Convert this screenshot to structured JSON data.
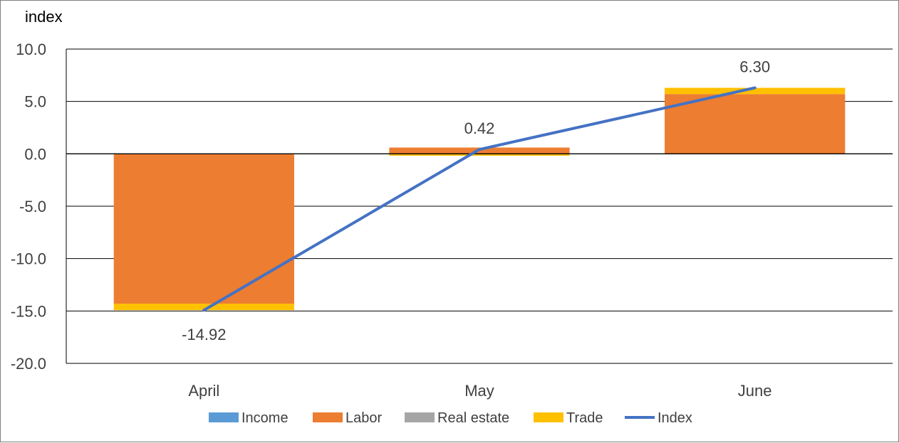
{
  "chart_data": {
    "type": "bar",
    "stacked": true,
    "ylabel": "index",
    "xlabel": "",
    "ylim": [
      -20,
      10
    ],
    "yticks": [
      10,
      5,
      0,
      -5,
      -10,
      -15,
      -20
    ],
    "ytick_labels": [
      "10.0",
      "5.0",
      "0.0",
      "-5.0",
      "-10.0",
      "-15.0",
      "-20.0"
    ],
    "grid": true,
    "legend_position": "bottom",
    "categories": [
      "April",
      "May",
      "June"
    ],
    "series": [
      {
        "name": "Income",
        "kind": "bar",
        "color": "#5b9bd5",
        "values": [
          0,
          0,
          0
        ]
      },
      {
        "name": "Labor",
        "kind": "bar",
        "color": "#ed7d31",
        "values": [
          -14.3,
          0.6,
          5.7
        ]
      },
      {
        "name": "Real estate",
        "kind": "bar",
        "color": "#a5a5a5",
        "values": [
          0,
          0,
          0
        ]
      },
      {
        "name": "Trade",
        "kind": "bar",
        "color": "#ffc000",
        "values": [
          -0.62,
          -0.18,
          0.6
        ]
      },
      {
        "name": "Index",
        "kind": "line",
        "color": "#4472c4",
        "values": [
          -14.92,
          0.42,
          6.3
        ]
      }
    ],
    "data_labels": [
      "-14.92",
      "0.42",
      "6.30"
    ]
  }
}
